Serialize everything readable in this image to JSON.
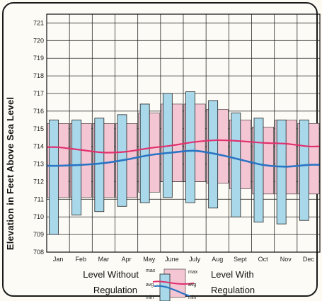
{
  "chart_data": {
    "type": "bar",
    "ylabel": "Elevation in Feet Above Sea Level",
    "ylim": [
      708,
      721.5
    ],
    "yticks": [
      708,
      709,
      710,
      711,
      712,
      713,
      714,
      715,
      716,
      717,
      718,
      719,
      720,
      721
    ],
    "categories": [
      "Jan",
      "Feb",
      "Mar",
      "Apr",
      "May",
      "June",
      "July",
      "Aug",
      "Sept",
      "Oct",
      "Nov",
      "Dec"
    ],
    "series": [
      {
        "name": "Level With Regulation",
        "max": [
          715.3,
          715.3,
          715.3,
          715.3,
          715.9,
          716.4,
          716.4,
          716.1,
          715.5,
          715.1,
          715.5,
          715.3
        ],
        "min": [
          711.1,
          711.1,
          711.1,
          711.1,
          711.4,
          712.0,
          712.0,
          711.9,
          711.6,
          711.3,
          711.3,
          711.3
        ],
        "avg": [
          713.95,
          713.8,
          713.65,
          713.7,
          713.9,
          714.05,
          714.25,
          714.35,
          714.3,
          714.2,
          714.15,
          714.0
        ]
      },
      {
        "name": "Level Without Regulation",
        "max": [
          715.5,
          715.5,
          715.6,
          715.8,
          716.4,
          717.0,
          717.1,
          716.6,
          715.9,
          715.6,
          715.5,
          715.5
        ],
        "min": [
          709.0,
          710.1,
          710.3,
          710.6,
          710.8,
          711.1,
          710.8,
          710.5,
          710.0,
          709.7,
          709.6,
          709.8
        ],
        "avg": [
          712.9,
          712.95,
          713.05,
          713.25,
          713.5,
          713.65,
          713.75,
          713.55,
          713.25,
          712.95,
          712.85,
          712.95
        ]
      }
    ],
    "colors": {
      "with_band": "#f4c6d4",
      "without_bar": "#a9d8ea",
      "with_avg_line": "#e0306e",
      "without_avg_line": "#2a74c4",
      "grid": "#2a2a2a"
    },
    "legend": {
      "without_line1": "Level Without",
      "without_line2": "Regulation",
      "with_line1": "Level With",
      "with_line2": "Regulation",
      "max": "max",
      "avg": "avg",
      "min": "min"
    },
    "grid": true
  }
}
